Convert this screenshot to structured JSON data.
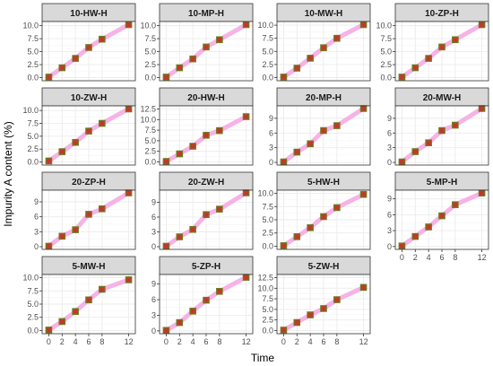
{
  "chart_data": {
    "type": "scatter",
    "xlabel": "Time",
    "ylabel": "Impurity A content (%)",
    "x_ticks": [
      0,
      2,
      4,
      6,
      8,
      12
    ],
    "colors": {
      "point_fill": "#c0392b",
      "point_edge": "#6e7d1e",
      "band": "#f4a6e3",
      "strip_bg": "#d9d9d9",
      "grid": "#ebebeb",
      "panel_border": "#333333"
    },
    "panels": [
      {
        "name": "10-HW-H",
        "x": [
          0,
          2,
          4,
          6,
          8,
          12
        ],
        "y": [
          0.1,
          1.9,
          3.7,
          5.8,
          7.4,
          10.2
        ],
        "yticks": [
          0,
          2.5,
          5,
          7.5,
          10
        ],
        "ytick_labels": [
          "0.0",
          "2.5",
          "5.0",
          "7.5",
          "10.0"
        ]
      },
      {
        "name": "10-MP-H",
        "x": [
          0,
          2,
          4,
          6,
          8,
          12
        ],
        "y": [
          0.1,
          1.9,
          3.6,
          5.9,
          7.3,
          10.2
        ],
        "yticks": [
          0,
          2.5,
          5,
          7.5,
          10
        ],
        "ytick_labels": [
          "0.0",
          "2.5",
          "5.0",
          "7.5",
          "10.0"
        ]
      },
      {
        "name": "10-MW-H",
        "x": [
          0,
          2,
          4,
          6,
          8,
          12
        ],
        "y": [
          0.1,
          1.8,
          3.7,
          5.7,
          7.5,
          10.1
        ],
        "yticks": [
          0,
          2.5,
          5,
          7.5,
          10
        ],
        "ytick_labels": [
          "0.0",
          "2.5",
          "5.0",
          "7.5",
          "10.0"
        ]
      },
      {
        "name": "10-ZP-H",
        "x": [
          0,
          2,
          4,
          6,
          8,
          12
        ],
        "y": [
          0.1,
          1.9,
          3.7,
          5.9,
          7.3,
          10.2
        ],
        "yticks": [
          0,
          2.5,
          5,
          7.5,
          10
        ],
        "ytick_labels": [
          "0.0",
          "2.5",
          "5.0",
          "7.5",
          "10.0"
        ]
      },
      {
        "name": "10-ZW-H",
        "x": [
          0,
          2,
          4,
          6,
          8,
          12
        ],
        "y": [
          0.2,
          2.0,
          3.8,
          6.0,
          7.5,
          10.3
        ],
        "yticks": [
          0,
          2.5,
          5,
          7.5,
          10
        ],
        "ytick_labels": [
          "0.0",
          "2.5",
          "5.0",
          "7.5",
          "10.0"
        ]
      },
      {
        "name": "20-HW-H",
        "x": [
          0,
          2,
          4,
          6,
          8,
          12
        ],
        "y": [
          0.1,
          1.9,
          3.7,
          6.3,
          7.4,
          10.7
        ],
        "yticks": [
          0,
          2.5,
          5,
          7.5,
          10,
          12.5
        ],
        "ytick_labels": [
          "0.0",
          "2.5",
          "5.0",
          "7.5",
          "10.0",
          "12.5"
        ]
      },
      {
        "name": "20-MP-H",
        "x": [
          0,
          2,
          4,
          6,
          8,
          12
        ],
        "y": [
          0.1,
          2.1,
          3.8,
          6.5,
          7.5,
          11.0
        ],
        "yticks": [
          0,
          3,
          6,
          9
        ],
        "ytick_labels": [
          "0",
          "3",
          "6",
          "9"
        ]
      },
      {
        "name": "20-MW-H",
        "x": [
          0,
          2,
          4,
          6,
          8,
          12
        ],
        "y": [
          0.1,
          2.2,
          4.0,
          6.5,
          7.6,
          11.0
        ],
        "yticks": [
          0,
          3,
          6,
          9
        ],
        "ytick_labels": [
          "0",
          "3",
          "6",
          "9"
        ]
      },
      {
        "name": "20-ZP-H",
        "x": [
          0,
          2,
          4,
          6,
          8,
          12
        ],
        "y": [
          0.1,
          2.1,
          3.4,
          6.5,
          7.6,
          10.8
        ],
        "yticks": [
          0,
          3,
          6,
          9
        ],
        "ytick_labels": [
          "0",
          "3",
          "6",
          "9"
        ]
      },
      {
        "name": "20-ZW-H",
        "x": [
          0,
          2,
          4,
          6,
          8,
          12
        ],
        "y": [
          0.1,
          2.0,
          3.5,
          6.5,
          7.6,
          10.9
        ],
        "yticks": [
          0,
          3,
          6,
          9
        ],
        "ytick_labels": [
          "0",
          "3",
          "6",
          "9"
        ]
      },
      {
        "name": "5-HW-H",
        "x": [
          0,
          2,
          4,
          6,
          8,
          12
        ],
        "y": [
          0.1,
          1.8,
          3.5,
          5.6,
          7.3,
          9.8
        ],
        "yticks": [
          0,
          2.5,
          5,
          7.5,
          10
        ],
        "ytick_labels": [
          "0.0",
          "2.5",
          "5.0",
          "7.5",
          "10.0"
        ]
      },
      {
        "name": "5-MP-H",
        "x": [
          0,
          2,
          4,
          6,
          8,
          12
        ],
        "y": [
          0.1,
          1.9,
          3.7,
          5.8,
          7.9,
          10.1
        ],
        "yticks": [
          0,
          3,
          6,
          9
        ],
        "ytick_labels": [
          "0",
          "3",
          "6",
          "9"
        ]
      },
      {
        "name": "5-MW-H",
        "x": [
          0,
          2,
          4,
          6,
          8,
          12
        ],
        "y": [
          0.1,
          1.7,
          3.6,
          5.8,
          7.8,
          9.6
        ],
        "yticks": [
          0,
          2.5,
          5,
          7.5,
          10
        ],
        "ytick_labels": [
          "0.0",
          "2.5",
          "5.0",
          "7.5",
          "10.0"
        ]
      },
      {
        "name": "5-ZP-H",
        "x": [
          0,
          2,
          4,
          6,
          8,
          12
        ],
        "y": [
          0.1,
          1.6,
          3.8,
          5.9,
          7.6,
          10.3
        ],
        "yticks": [
          0,
          3,
          6,
          9
        ],
        "ytick_labels": [
          "0",
          "3",
          "6",
          "9"
        ]
      },
      {
        "name": "5-ZW-H",
        "x": [
          0,
          2,
          4,
          6,
          8,
          12
        ],
        "y": [
          0.1,
          1.9,
          3.7,
          5.2,
          7.3,
          10.2
        ],
        "yticks": [
          0,
          2.5,
          5,
          7.5,
          10,
          12.5
        ],
        "ytick_labels": [
          "0.0",
          "2.5",
          "5.0",
          "7.5",
          "10.0",
          "12.5"
        ]
      }
    ]
  }
}
